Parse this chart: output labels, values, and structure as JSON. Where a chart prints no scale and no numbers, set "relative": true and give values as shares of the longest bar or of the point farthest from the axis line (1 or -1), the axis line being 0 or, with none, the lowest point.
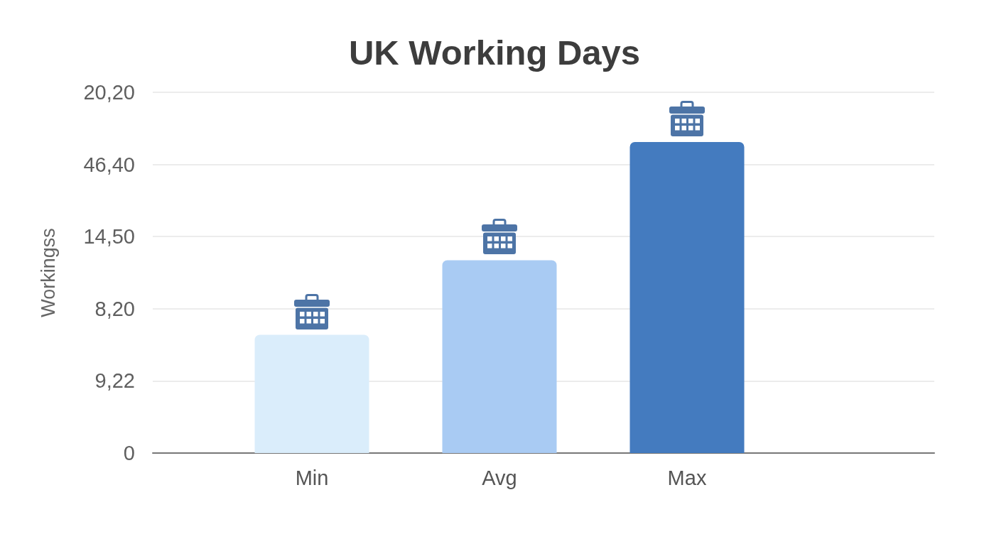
{
  "chart_data": {
    "type": "bar",
    "title": "UK Working Days",
    "ylabel": "Workingss",
    "categories": [
      "Min",
      "Avg",
      "Max"
    ],
    "values": [
      0.38,
      0.62,
      1
    ],
    "colors": [
      "#daedfb",
      "#a9cbf3",
      "#447bbf"
    ],
    "relative": true,
    "annotations": [
      "20,20",
      "46,40",
      "14,50",
      "8,20",
      "9,22",
      "0"
    ],
    "grid": "y"
  }
}
